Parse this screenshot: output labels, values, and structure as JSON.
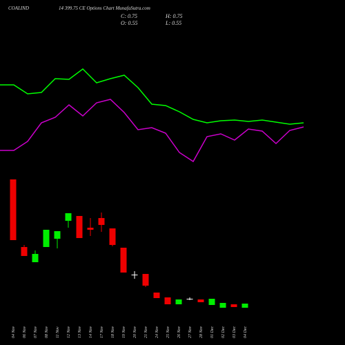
{
  "chart_data": [
    {
      "type": "line",
      "symbol": "COALIND",
      "title": "14 399.75 CE Options  Chart MunafaSutra.com",
      "close_label": "C: 0.75",
      "high_label": "H: 0.75",
      "open_label": "O: 0.55",
      "low_label": "L: 0.55",
      "categories": [
        null,
        null,
        null,
        null,
        null,
        null,
        null,
        null,
        null,
        null,
        null,
        null,
        null,
        null,
        null,
        null,
        null,
        null,
        null,
        null,
        null,
        null,
        null
      ],
      "series": [
        {
          "color": "#00ff00",
          "values": [
            127,
            127,
            114,
            116,
            136,
            135,
            150,
            130,
            136,
            141,
            123,
            99,
            97,
            88,
            77,
            72,
            75,
            76,
            74,
            76,
            73,
            70,
            72
          ]
        },
        {
          "color": "#cc00cc",
          "values": [
            32,
            32,
            45,
            72,
            80,
            98,
            82,
            101,
            106,
            87,
            62,
            65,
            57,
            29,
            16,
            52,
            56,
            47,
            63,
            60,
            42,
            61,
            66
          ]
        }
      ],
      "ylim": [
        0,
        160
      ]
    },
    {
      "type": "candlestick",
      "categories": [
        "04 Nov",
        "06 Nov",
        "07 Nov",
        "08 Nov",
        "11 Nov",
        "12 Nov",
        "13 Nov",
        "14 Nov",
        "17 Nov",
        "18 Nov",
        "19 Nov",
        "20 Nov",
        "21 Nov",
        "24 Nov",
        "25 Nov",
        "26 Nov",
        "27 Nov",
        "28 Nov",
        "01 Dec",
        "02 Dec",
        "03 Dec",
        "04 Dec"
      ],
      "open": [
        200,
        102,
        80,
        102,
        114,
        140,
        147,
        130,
        144,
        129,
        101,
        62,
        63,
        36,
        29,
        19,
        27,
        26,
        18,
        14,
        19,
        14
      ],
      "high": [
        200,
        105,
        97,
        127,
        125,
        151,
        147,
        144,
        152,
        129,
        101,
        67,
        63,
        36,
        29,
        26,
        29,
        26,
        27,
        21,
        19,
        20
      ],
      "low": [
        112,
        89,
        80,
        102,
        100,
        130,
        115,
        118,
        124,
        103,
        65,
        56,
        44,
        28,
        19,
        19,
        25,
        22,
        18,
        14,
        15,
        14
      ],
      "close": [
        112,
        89,
        92,
        127,
        125,
        151,
        115,
        127,
        134,
        105,
        65,
        62,
        46,
        28,
        19,
        26,
        27,
        22,
        27,
        21,
        15,
        20
      ],
      "up_color": "#00ee00",
      "down_color": "#ee0000",
      "doji_color": "#ffffff",
      "ylim": [
        0,
        220
      ]
    }
  ]
}
